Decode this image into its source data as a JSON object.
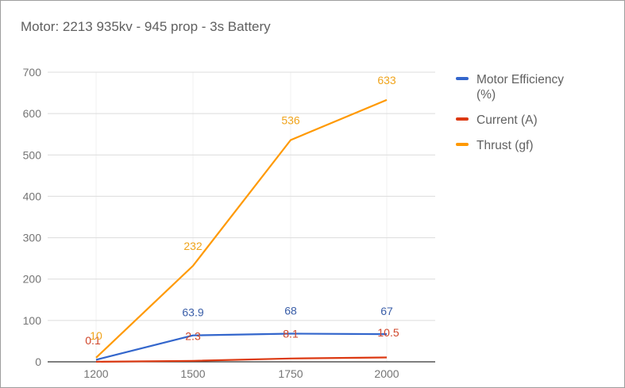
{
  "chart_data": {
    "type": "line",
    "title": "Motor: 2213 935kv - 945 prop - 3s Battery",
    "xlabel": "",
    "ylabel": "",
    "categories": [
      "1200",
      "1500",
      "1750",
      "2000"
    ],
    "ylim": [
      0,
      700
    ],
    "yticks": [
      0,
      100,
      200,
      300,
      400,
      500,
      600,
      700
    ],
    "grid": true,
    "legend_position": "right",
    "series": [
      {
        "name": "Motor Efficiency (%)",
        "legend_lines": [
          "Motor Efficiency",
          "(%)"
        ],
        "color": "#3366cc",
        "values": [
          5,
          63.9,
          68,
          67
        ],
        "labels": [
          "",
          "63.9",
          "68",
          "67"
        ]
      },
      {
        "name": "Current (A)",
        "legend_lines": [
          "Current (A)"
        ],
        "color": "#dc3912",
        "values": [
          0.1,
          2.3,
          8.1,
          10.5
        ],
        "labels": [
          "0.1",
          "2.3",
          "8.1",
          "10.5"
        ]
      },
      {
        "name": "Thrust (gf)",
        "legend_lines": [
          "Thrust (gf)"
        ],
        "color": "#ff9900",
        "values": [
          10,
          232,
          536,
          633
        ],
        "labels": [
          "10",
          "232",
          "536",
          "633"
        ]
      }
    ]
  }
}
